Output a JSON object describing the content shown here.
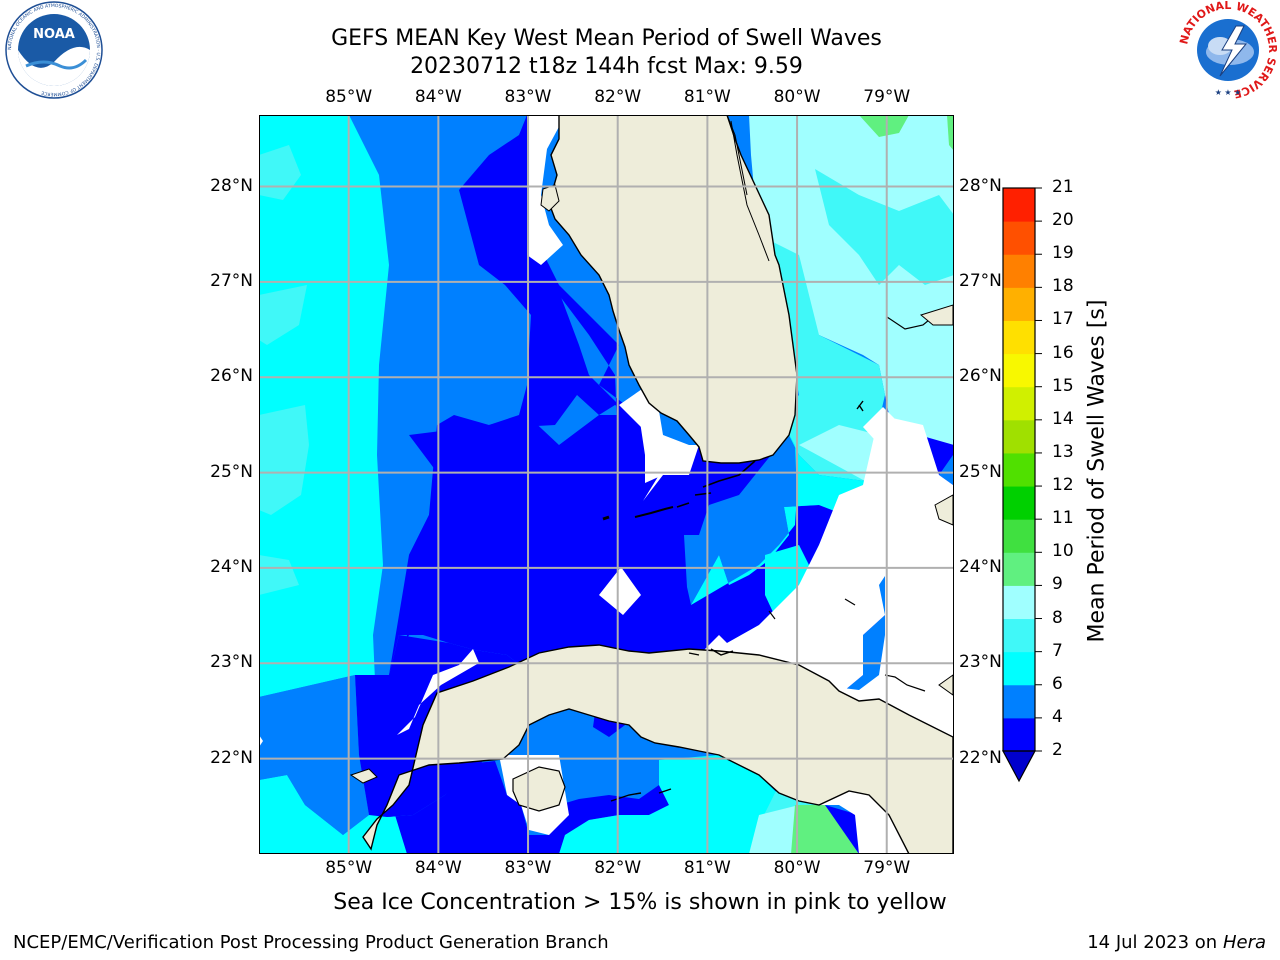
{
  "title_line1": "GEFS MEAN Key West Mean Period of Swell Waves",
  "title_line2": "20230712 t18z 144h fcst   Max: 9.59",
  "subtitle": "Sea Ice Concentration > 15% is shown in pink to yellow",
  "footer_left": "NCEP/EMC/Verification Post Processing Product Generation Branch",
  "footer_date": "14 Jul 2023 on ",
  "footer_host": "Hera",
  "logos": {
    "noaa_text": "NOAA",
    "noaa_ring_text": "NATIONAL OCEANIC AND ATMOSPHERIC ADMINISTRATION · U.S. DEPARTMENT OF COMMERCE",
    "nws_ring_text": "NATIONAL WEATHER SERVICE"
  },
  "map": {
    "longitude_labels": [
      "85°W",
      "84°W",
      "83°W",
      "82°W",
      "81°W",
      "80°W",
      "79°W"
    ],
    "latitude_labels": [
      "28°N",
      "27°N",
      "26°N",
      "25°N",
      "24°N",
      "23°N",
      "22°N"
    ],
    "lon_range": [
      -86.0,
      -78.25
    ],
    "lat_range": [
      21.0,
      28.75
    ],
    "ocean_background_level": "2-4",
    "land_color": "#eeedda",
    "gridline_color": "#b0b0b0"
  },
  "colorbar": {
    "label": "Mean Period of Swell Waves [s]",
    "levels": [
      "2",
      "4",
      "6",
      "7",
      "8",
      "9",
      "10",
      "11",
      "12",
      "13",
      "14",
      "15",
      "16",
      "17",
      "18",
      "19",
      "20",
      "21"
    ],
    "colors": [
      "#0000ff",
      "#0080ff",
      "#00ffff",
      "#40f8f8",
      "#a0ffff",
      "#60f080",
      "#40e040",
      "#00d000",
      "#50e000",
      "#a0e000",
      "#d0f000",
      "#f8f800",
      "#ffe000",
      "#ffb000",
      "#ff8000",
      "#ff5000",
      "#ff2000"
    ],
    "extend": "min",
    "under_color": "#0000cd"
  }
}
